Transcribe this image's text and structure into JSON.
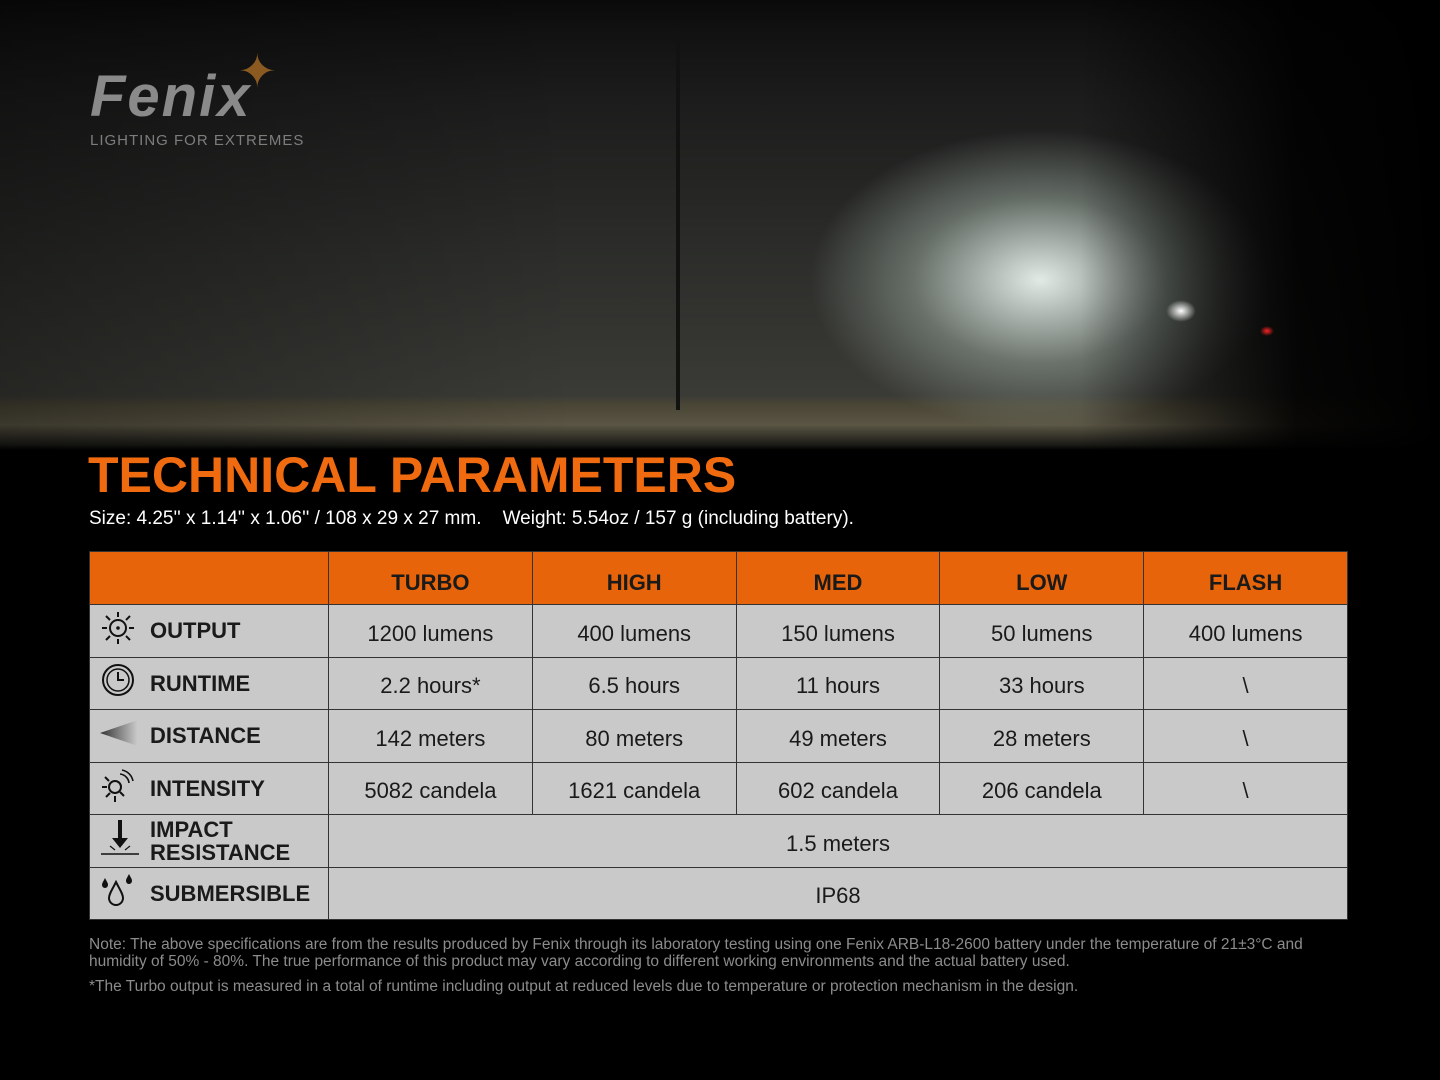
{
  "brand": {
    "name": "Fenix",
    "tagline": "LIGHTING FOR EXTREMES",
    "logo_star_color": "#8a5a20"
  },
  "title": "TECHNICAL PARAMETERS",
  "subtitle": "Size: 4.25'' x 1.14'' x 1.06'' / 108 x 29 x 27 mm.    Weight: 5.54oz / 157 g (including battery).",
  "accent_color": "#e8640a",
  "table": {
    "columns": [
      "",
      "TURBO",
      "HIGH",
      "MED",
      "LOW",
      "FLASH"
    ],
    "rows": [
      {
        "icon": "sun-icon",
        "label": "OUTPUT",
        "values": [
          "1200 lumens",
          "400 lumens",
          "150 lumens",
          "50 lumens",
          "400 lumens"
        ]
      },
      {
        "icon": "clock-icon",
        "label": "RUNTIME",
        "values": [
          "2.2 hours*",
          "6.5 hours",
          "11 hours",
          "33 hours",
          "\\"
        ]
      },
      {
        "icon": "beam-icon",
        "label": "DISTANCE",
        "values": [
          "142 meters",
          "80 meters",
          "49 meters",
          "28 meters",
          "\\"
        ]
      },
      {
        "icon": "intensity-icon",
        "label": "INTENSITY",
        "values": [
          "5082 candela",
          "1621 candela",
          "602 candela",
          "206 candela",
          "\\"
        ]
      },
      {
        "icon": "impact-icon",
        "label": "IMPACT RESISTANCE",
        "value": "1.5 meters"
      },
      {
        "icon": "water-drop-icon",
        "label": "SUBMERSIBLE",
        "value": "IP68"
      }
    ]
  },
  "notes": [
    "Note: The above specifications are from the results produced by Fenix through its laboratory testing using one Fenix ARB-L18-2600 battery under the temperature of 21±3°C and humidity of 50% - 80%. The true performance of this product may vary according to different working environments and the actual battery used.",
    "*The Turbo output is measured in a total of runtime including output at reduced levels due to temperature or protection mechanism in the design."
  ]
}
